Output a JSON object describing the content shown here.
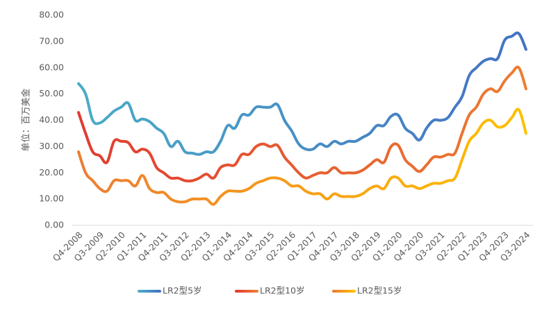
{
  "chart_data": {
    "type": "line",
    "y_label": "单位：百万美金",
    "categories": [
      "Q4-2008",
      null,
      null,
      "Q3-2009",
      null,
      null,
      "Q2-2010",
      null,
      null,
      "Q1-2011",
      null,
      null,
      "Q4-2011",
      null,
      null,
      "Q3-2012",
      null,
      null,
      "Q2-2013",
      null,
      null,
      "Q1-2014",
      null,
      null,
      "Q4-2014",
      null,
      null,
      "Q3-2015",
      null,
      null,
      "Q2-2016",
      null,
      null,
      "Q1-2017",
      null,
      null,
      "Q4-2017",
      null,
      null,
      "Q3-2018",
      null,
      null,
      "Q2-2019",
      null,
      null,
      "Q1-2020",
      null,
      null,
      "Q4-2020",
      null,
      null,
      "Q3-2021",
      null,
      null,
      "Q2-2022",
      null,
      null,
      "Q1-2023",
      null,
      null,
      "Q4-2023",
      null,
      null,
      "Q3-2024"
    ],
    "series": [
      {
        "name": "LR2型5岁",
        "color": [
          "#4bacc6",
          "#4472c4"
        ],
        "values": [
          54,
          50,
          40,
          39,
          41,
          43.5,
          45,
          46.5,
          40,
          40.5,
          39.5,
          37,
          35,
          30,
          32,
          28,
          27.5,
          27,
          28,
          28,
          32,
          38,
          37,
          42,
          42,
          45,
          45,
          45,
          46,
          40,
          36,
          31,
          29,
          29,
          31,
          30,
          32,
          31,
          32,
          32,
          33.5,
          35,
          38,
          38,
          41.5,
          42,
          37,
          35,
          32.5,
          37,
          40,
          40,
          41,
          45,
          49,
          57,
          60,
          62.5,
          63.5,
          63.5,
          70.5,
          72,
          73,
          67
        ]
      },
      {
        "name": "LR2型10岁",
        "color": [
          "#e03c31",
          "#ed7d31"
        ],
        "values": [
          43,
          35,
          28,
          26.5,
          24,
          32,
          32,
          31.5,
          28,
          29,
          27.5,
          22,
          20,
          18,
          18,
          17,
          17,
          18,
          19.5,
          18,
          22,
          23,
          23,
          27,
          27,
          30,
          31,
          30,
          30.5,
          26,
          23,
          20,
          18,
          19,
          20,
          20,
          22,
          20,
          20,
          20,
          21,
          23,
          25,
          24,
          30,
          30.5,
          25,
          22.5,
          20.5,
          23,
          26,
          26,
          27,
          27.5,
          35,
          42,
          45,
          50,
          52,
          51,
          55,
          58,
          60,
          52
        ]
      },
      {
        "name": "LR2型15岁",
        "color": [
          "#ed7d31",
          "#ffc000"
        ],
        "values": [
          28,
          20,
          17,
          14,
          13,
          17,
          17,
          17,
          15,
          19,
          14,
          12.5,
          12.5,
          10,
          9,
          9,
          10,
          10,
          10,
          8,
          11,
          13,
          13,
          13,
          14,
          16,
          17,
          18,
          18,
          17,
          15,
          15,
          13,
          12,
          12,
          10,
          12,
          11,
          11,
          11,
          12,
          14,
          15,
          14,
          18,
          18,
          15,
          15,
          14,
          15,
          16,
          16,
          17,
          18,
          25,
          32,
          35,
          39,
          40,
          37.5,
          38,
          41,
          44,
          35
        ]
      }
    ],
    "ylim": [
      0,
      80
    ],
    "yticks": [
      {
        "value": 0,
        "label": "0.00"
      },
      {
        "value": 10,
        "label": "10.00"
      },
      {
        "value": 20,
        "label": "20.00"
      },
      {
        "value": 30,
        "label": "30.00"
      },
      {
        "value": 40,
        "label": "40.00"
      },
      {
        "value": 50,
        "label": "50.00"
      },
      {
        "value": 60,
        "label": "60.00"
      },
      {
        "value": 70,
        "label": "70.00"
      },
      {
        "value": 80,
        "label": "80.00"
      }
    ],
    "grid": false,
    "legend": "bottom"
  }
}
